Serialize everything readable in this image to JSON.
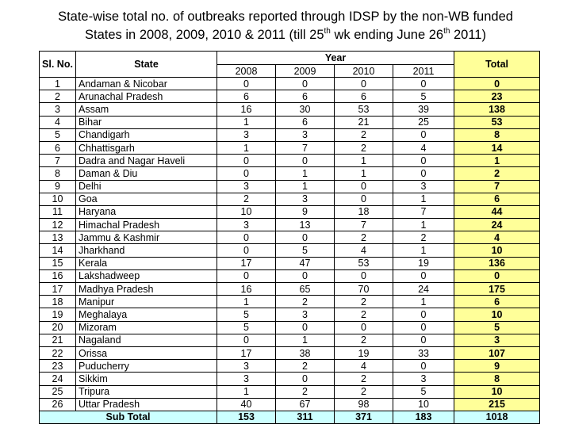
{
  "title": {
    "line1": "State-wise total no. of outbreaks reported through IDSP by the non-WB funded",
    "line2_a": "States in 2008, 2009, 2010 & 2011 (till 25",
    "line2_sup1": "th",
    "line2_b": " wk ending June 26",
    "line2_sup2": "th",
    "line2_c": " 2011)"
  },
  "table": {
    "headers": {
      "sl_no": "Sl. No.",
      "state": "State",
      "year": "Year",
      "total": "Total",
      "years": [
        "2008",
        "2009",
        "2010",
        "2011"
      ]
    },
    "rows": [
      {
        "sl": "1",
        "state": "Andaman & Nicobar",
        "y2008": "0",
        "y2009": "0",
        "y2010": "0",
        "y2011": "0",
        "total": "0"
      },
      {
        "sl": "2",
        "state": "Arunachal Pradesh",
        "y2008": "6",
        "y2009": "6",
        "y2010": "6",
        "y2011": "5",
        "total": "23"
      },
      {
        "sl": "3",
        "state": "Assam",
        "y2008": "16",
        "y2009": "30",
        "y2010": "53",
        "y2011": "39",
        "total": "138"
      },
      {
        "sl": "4",
        "state": "Bihar",
        "y2008": "1",
        "y2009": "6",
        "y2010": "21",
        "y2011": "25",
        "total": "53"
      },
      {
        "sl": "5",
        "state": "Chandigarh",
        "y2008": "3",
        "y2009": "3",
        "y2010": "2",
        "y2011": "0",
        "total": "8"
      },
      {
        "sl": "6",
        "state": "Chhattisgarh",
        "y2008": "1",
        "y2009": "7",
        "y2010": "2",
        "y2011": "4",
        "total": "14"
      },
      {
        "sl": "7",
        "state": "Dadra and Nagar Haveli",
        "y2008": "0",
        "y2009": "0",
        "y2010": "1",
        "y2011": "0",
        "total": "1"
      },
      {
        "sl": "8",
        "state": "Daman & Diu",
        "y2008": "0",
        "y2009": "1",
        "y2010": "1",
        "y2011": "0",
        "total": "2"
      },
      {
        "sl": "9",
        "state": "Delhi",
        "y2008": "3",
        "y2009": "1",
        "y2010": "0",
        "y2011": "3",
        "total": "7"
      },
      {
        "sl": "10",
        "state": "Goa",
        "y2008": "2",
        "y2009": "3",
        "y2010": "0",
        "y2011": "1",
        "total": "6"
      },
      {
        "sl": "11",
        "state": "Haryana",
        "y2008": "10",
        "y2009": "9",
        "y2010": "18",
        "y2011": "7",
        "total": "44"
      },
      {
        "sl": "12",
        "state": "Himachal Pradesh",
        "y2008": "3",
        "y2009": "13",
        "y2010": "7",
        "y2011": "1",
        "total": "24"
      },
      {
        "sl": "13",
        "state": "Jammu & Kashmir",
        "y2008": "0",
        "y2009": "0",
        "y2010": "2",
        "y2011": "2",
        "total": "4"
      },
      {
        "sl": "14",
        "state": "Jharkhand",
        "y2008": "0",
        "y2009": "5",
        "y2010": "4",
        "y2011": "1",
        "total": "10"
      },
      {
        "sl": "15",
        "state": "Kerala",
        "y2008": "17",
        "y2009": "47",
        "y2010": "53",
        "y2011": "19",
        "total": "136"
      },
      {
        "sl": "16",
        "state": "Lakshadweep",
        "y2008": "0",
        "y2009": "0",
        "y2010": "0",
        "y2011": "0",
        "total": "0"
      },
      {
        "sl": "17",
        "state": "Madhya Pradesh",
        "y2008": "16",
        "y2009": "65",
        "y2010": "70",
        "y2011": "24",
        "total": "175"
      },
      {
        "sl": "18",
        "state": "Manipur",
        "y2008": "1",
        "y2009": "2",
        "y2010": "2",
        "y2011": "1",
        "total": "6"
      },
      {
        "sl": "19",
        "state": "Meghalaya",
        "y2008": "5",
        "y2009": "3",
        "y2010": "2",
        "y2011": "0",
        "total": "10"
      },
      {
        "sl": "20",
        "state": "Mizoram",
        "y2008": "5",
        "y2009": "0",
        "y2010": "0",
        "y2011": "0",
        "total": "5"
      },
      {
        "sl": "21",
        "state": "Nagaland",
        "y2008": "0",
        "y2009": "1",
        "y2010": "2",
        "y2011": "0",
        "total": "3"
      },
      {
        "sl": "22",
        "state": "Orissa",
        "y2008": "17",
        "y2009": "38",
        "y2010": "19",
        "y2011": "33",
        "total": "107"
      },
      {
        "sl": "23",
        "state": "Puducherry",
        "y2008": "3",
        "y2009": "2",
        "y2010": "4",
        "y2011": "0",
        "total": "9"
      },
      {
        "sl": "24",
        "state": "Sikkim",
        "y2008": "3",
        "y2009": "0",
        "y2010": "2",
        "y2011": "3",
        "total": "8"
      },
      {
        "sl": "25",
        "state": "Tripura",
        "y2008": "1",
        "y2009": "2",
        "y2010": "2",
        "y2011": "5",
        "total": "10"
      },
      {
        "sl": "26",
        "state": "Uttar Pradesh",
        "y2008": "40",
        "y2009": "67",
        "y2010": "98",
        "y2011": "10",
        "total": "215"
      }
    ],
    "subtotal": {
      "label": "Sub Total",
      "y2008": "153",
      "y2009": "311",
      "y2010": "371",
      "y2011": "183",
      "total": "1018"
    }
  },
  "colors": {
    "total_column": "#ffff99",
    "subtotal_row": "#ccffff"
  }
}
